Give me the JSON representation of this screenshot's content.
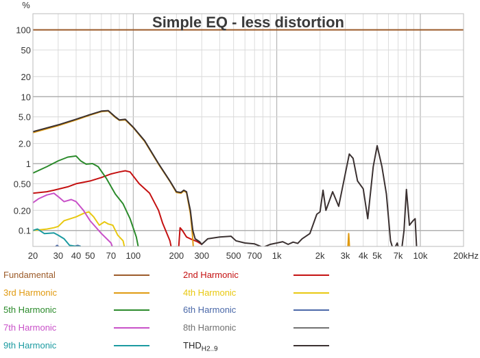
{
  "chart_data": {
    "type": "line",
    "title": "Simple EQ - less distortion",
    "ylabel": "%",
    "xlabel": "",
    "x_unit": "kHz",
    "x_scale": "log",
    "y_scale": "log",
    "xlim": [
      20,
      20000
    ],
    "ylim": [
      0.058,
      176
    ],
    "grid": true,
    "legend_placement": "bottom",
    "x_ticks": [
      20,
      30,
      40,
      50,
      70,
      100,
      200,
      300,
      500,
      700,
      1000,
      2000,
      3000,
      4000,
      5000,
      7000,
      10000,
      20000
    ],
    "x_tick_labels": [
      "20",
      "30",
      "40",
      "50",
      "70",
      "100",
      "200",
      "300",
      "500",
      "700",
      "1k",
      "2k",
      "3k",
      "4k",
      "5k",
      "7k",
      "10k",
      "20kHz"
    ],
    "y_ticks": [
      100,
      50,
      20,
      10,
      5,
      2,
      1,
      0.5,
      0.2,
      0.1
    ],
    "y_tick_labels": [
      "100",
      "50",
      "20",
      "10",
      "5.0",
      "2.0",
      "1",
      "0.50",
      "0.20",
      "0.1"
    ],
    "series": [
      {
        "name": "Fundamental",
        "color": "#9b5a28",
        "points": [
          [
            20,
            100
          ],
          [
            20000,
            100
          ]
        ]
      },
      {
        "name": "2nd Harmonic",
        "color": "#c41010",
        "points": [
          [
            20,
            0.36
          ],
          [
            25,
            0.38
          ],
          [
            28,
            0.4
          ],
          [
            35,
            0.45
          ],
          [
            40,
            0.5
          ],
          [
            50,
            0.55
          ],
          [
            60,
            0.62
          ],
          [
            70,
            0.7
          ],
          [
            80,
            0.75
          ],
          [
            88,
            0.78
          ],
          [
            95,
            0.75
          ],
          [
            110,
            0.5
          ],
          [
            130,
            0.36
          ],
          [
            150,
            0.2
          ],
          [
            160,
            0.13
          ],
          [
            180,
            0.07
          ],
          [
            190,
            0.04
          ]
        ]
      },
      {
        "name": "2nd Harmonic",
        "color": "#c41010",
        "points": [
          [
            205,
            0.04
          ],
          [
            212,
            0.11
          ],
          [
            220,
            0.1
          ],
          [
            235,
            0.08
          ],
          [
            250,
            0.075
          ],
          [
            280,
            0.068
          ],
          [
            300,
            0.062
          ]
        ]
      },
      {
        "name": "3rd Harmonic",
        "color": "#e09a10",
        "points": [
          [
            20,
            2.9
          ],
          [
            30,
            3.7
          ],
          [
            40,
            4.5
          ],
          [
            50,
            5.3
          ],
          [
            60,
            6.0
          ],
          [
            67,
            6.1
          ],
          [
            75,
            4.9
          ],
          [
            80,
            4.45
          ],
          [
            88,
            4.5
          ],
          [
            100,
            3.45
          ],
          [
            120,
            2.15
          ],
          [
            150,
            0.98
          ],
          [
            180,
            0.54
          ],
          [
            200,
            0.37
          ],
          [
            215,
            0.36
          ],
          [
            225,
            0.39
          ],
          [
            235,
            0.37
          ],
          [
            250,
            0.18
          ],
          [
            258,
            0.09
          ],
          [
            265,
            0.04
          ]
        ]
      },
      {
        "name": "3rd Harmonic",
        "color": "#e09a10",
        "points": [
          [
            3100,
            0.04
          ],
          [
            3170,
            0.09
          ],
          [
            3240,
            0.04
          ]
        ]
      },
      {
        "name": "4th Harmonic",
        "color": "#e8c810",
        "points": [
          [
            20,
            0.1
          ],
          [
            25,
            0.105
          ],
          [
            28,
            0.11
          ],
          [
            30,
            0.115
          ],
          [
            33,
            0.14
          ],
          [
            40,
            0.16
          ],
          [
            45,
            0.18
          ],
          [
            49,
            0.19
          ],
          [
            53,
            0.16
          ],
          [
            58,
            0.12
          ],
          [
            63,
            0.135
          ],
          [
            67,
            0.125
          ],
          [
            72,
            0.12
          ],
          [
            78,
            0.085
          ],
          [
            85,
            0.07
          ],
          [
            90,
            0.04
          ]
        ]
      },
      {
        "name": "5th Harmonic",
        "color": "#2a8a2a",
        "points": [
          [
            20,
            0.72
          ],
          [
            25,
            0.9
          ],
          [
            30,
            1.1
          ],
          [
            35,
            1.25
          ],
          [
            40,
            1.3
          ],
          [
            43,
            1.1
          ],
          [
            47,
            0.98
          ],
          [
            52,
            1.0
          ],
          [
            57,
            0.9
          ],
          [
            65,
            0.6
          ],
          [
            75,
            0.35
          ],
          [
            85,
            0.25
          ],
          [
            95,
            0.15
          ],
          [
            105,
            0.08
          ],
          [
            112,
            0.04
          ]
        ]
      },
      {
        "name": "6th Harmonic",
        "color": "#4a68a8",
        "points": [
          [
            28,
            0.055
          ],
          [
            29.5,
            0.06
          ],
          [
            31,
            0.055
          ]
        ]
      },
      {
        "name": "6th Harmonic",
        "color": "#4a68a8",
        "points": [
          [
            39,
            0.058
          ],
          [
            41,
            0.06
          ],
          [
            43,
            0.058
          ]
        ]
      },
      {
        "name": "7th Harmonic",
        "color": "#c850c8",
        "points": [
          [
            20,
            0.26
          ],
          [
            22,
            0.3
          ],
          [
            25,
            0.34
          ],
          [
            28,
            0.36
          ],
          [
            30,
            0.32
          ],
          [
            33,
            0.27
          ],
          [
            37,
            0.29
          ],
          [
            40,
            0.27
          ],
          [
            45,
            0.2
          ],
          [
            50,
            0.14
          ],
          [
            60,
            0.09
          ],
          [
            70,
            0.065
          ],
          [
            76,
            0.04
          ]
        ]
      },
      {
        "name": "8th Harmonic",
        "color": "#707070",
        "points": []
      },
      {
        "name": "9th Harmonic",
        "color": "#1a9aa0",
        "points": [
          [
            20,
            0.1
          ],
          [
            21.5,
            0.105
          ],
          [
            24,
            0.09
          ],
          [
            28,
            0.092
          ],
          [
            30,
            0.085
          ],
          [
            33,
            0.075
          ],
          [
            36,
            0.06
          ],
          [
            40,
            0.058
          ],
          [
            43,
            0.058
          ]
        ]
      },
      {
        "name": "THD H2..9",
        "color": "#3a3030",
        "points": [
          [
            20,
            3.0
          ],
          [
            30,
            3.8
          ],
          [
            40,
            4.6
          ],
          [
            50,
            5.4
          ],
          [
            60,
            6.1
          ],
          [
            67,
            6.2
          ],
          [
            75,
            5.0
          ],
          [
            80,
            4.5
          ],
          [
            88,
            4.6
          ],
          [
            100,
            3.5
          ],
          [
            120,
            2.2
          ],
          [
            150,
            1.0
          ],
          [
            180,
            0.55
          ],
          [
            200,
            0.38
          ],
          [
            215,
            0.37
          ],
          [
            225,
            0.4
          ],
          [
            235,
            0.38
          ],
          [
            250,
            0.2
          ],
          [
            260,
            0.1
          ],
          [
            270,
            0.075
          ],
          [
            290,
            0.068
          ],
          [
            300,
            0.062
          ],
          [
            330,
            0.075
          ],
          [
            400,
            0.08
          ],
          [
            480,
            0.082
          ],
          [
            520,
            0.07
          ],
          [
            600,
            0.065
          ],
          [
            700,
            0.063
          ],
          [
            800,
            0.056
          ],
          [
            900,
            0.062
          ],
          [
            1000,
            0.065
          ],
          [
            1100,
            0.068
          ],
          [
            1200,
            0.062
          ],
          [
            1300,
            0.067
          ],
          [
            1400,
            0.064
          ],
          [
            1500,
            0.075
          ],
          [
            1700,
            0.09
          ],
          [
            1900,
            0.175
          ],
          [
            2000,
            0.19
          ],
          [
            2100,
            0.4
          ],
          [
            2200,
            0.2
          ],
          [
            2450,
            0.38
          ],
          [
            2700,
            0.23
          ],
          [
            3000,
            0.7
          ],
          [
            3200,
            1.39
          ],
          [
            3400,
            1.2
          ],
          [
            3650,
            0.55
          ],
          [
            4000,
            0.42
          ],
          [
            4300,
            0.15
          ],
          [
            4700,
            0.9
          ],
          [
            5000,
            1.85
          ],
          [
            5400,
            0.9
          ],
          [
            5800,
            0.35
          ],
          [
            6200,
            0.07
          ],
          [
            6500,
            0.05
          ],
          [
            6900,
            0.065
          ],
          [
            7300,
            0.04
          ],
          [
            7700,
            0.1
          ],
          [
            8000,
            0.41
          ],
          [
            8400,
            0.12
          ],
          [
            8900,
            0.14
          ],
          [
            9200,
            0.15
          ],
          [
            9500,
            0.04
          ]
        ]
      }
    ]
  },
  "legend": {
    "items": [
      {
        "label": "Fundamental",
        "color": "#9b5a28"
      },
      {
        "label": "2nd Harmonic",
        "color": "#c41010"
      },
      {
        "label": "3rd Harmonic",
        "color": "#e09a10"
      },
      {
        "label": "4th Harmonic",
        "color": "#e8c810"
      },
      {
        "label": "5th Harmonic",
        "color": "#2a8a2a"
      },
      {
        "label": "6th Harmonic",
        "color": "#4a68a8"
      },
      {
        "label": "7th Harmonic",
        "color": "#c850c8"
      },
      {
        "label": "8th Harmonic",
        "color": "#707070"
      },
      {
        "label": "9th Harmonic",
        "color": "#1a9aa0"
      },
      {
        "label": "THD",
        "sub": "H2..9",
        "color": "#3a3030"
      }
    ]
  }
}
